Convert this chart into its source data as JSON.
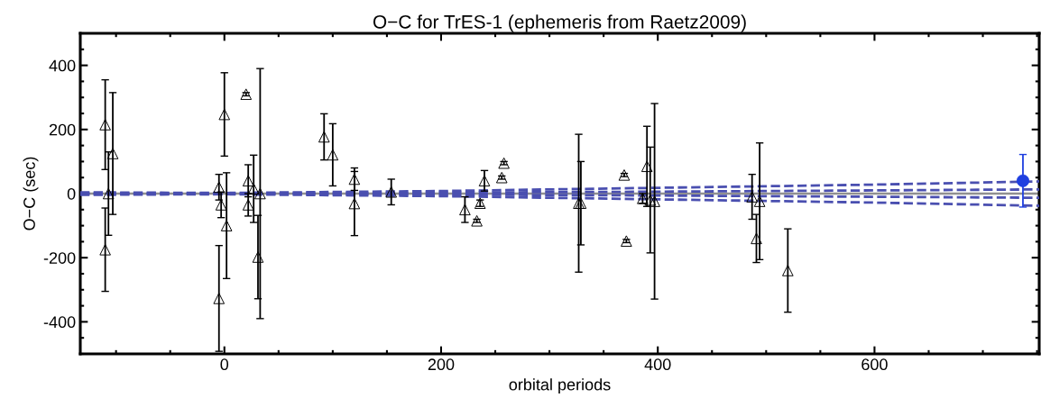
{
  "chart_data": {
    "type": "scatter",
    "title": "O−C for TrES-1 (ephemeris from Raetz2009)",
    "xlabel": "orbital periods",
    "ylabel": "O−C (sec)",
    "xlim": [
      -133,
      752
    ],
    "ylim": [
      -500,
      500
    ],
    "xticks": [
      0,
      200,
      400,
      600
    ],
    "yticks": [
      -400,
      -200,
      0,
      200,
      400
    ],
    "grid": false,
    "ref_lines": [
      {
        "axis": "y",
        "value": 0,
        "color": "#909090",
        "line_style": "solid"
      }
    ],
    "series": [
      {
        "type": "line",
        "color": "#4a4fb0",
        "line_style": "dashed",
        "marker": "none",
        "x": [
          -133,
          0,
          200,
          400,
          600,
          752
        ],
        "values": [
          4,
          2,
          8,
          18,
          28,
          38
        ]
      },
      {
        "type": "line",
        "color": "#4a4fb0",
        "line_style": "dashed",
        "marker": "none",
        "x": [
          -133,
          0,
          200,
          400,
          600,
          752
        ],
        "values": [
          -4,
          -2,
          -8,
          -18,
          -28,
          -38
        ]
      },
      {
        "type": "line",
        "color": "#4a4fb0",
        "line_style": "dashed",
        "marker": "none",
        "x": [
          -133,
          0,
          200,
          400,
          600,
          752
        ],
        "values": [
          1,
          0,
          3,
          6,
          10,
          13
        ]
      },
      {
        "type": "line",
        "color": "#4a4fb0",
        "line_style": "dashed",
        "marker": "none",
        "x": [
          -133,
          0,
          200,
          400,
          600,
          752
        ],
        "values": [
          -1,
          0,
          -3,
          -6,
          -10,
          -13
        ]
      },
      {
        "color": "#000000",
        "marker": "triangle",
        "x": [
          -110,
          -110,
          -107,
          -103,
          -5,
          -5,
          0,
          2,
          -3,
          20,
          22,
          22,
          27,
          31,
          33,
          92,
          100,
          120,
          120,
          154,
          222,
          233,
          236,
          240,
          256,
          258,
          327,
          329,
          369,
          371,
          386,
          390,
          397,
          393,
          487,
          491,
          494,
          520
        ],
        "values": [
          215,
          -175,
          0,
          125,
          20,
          -327,
          247,
          -100,
          -35,
          310,
          40,
          -35,
          15,
          -198,
          0,
          177,
          121,
          45,
          -31,
          5,
          -50,
          -85,
          -30,
          40,
          50,
          95,
          -30,
          -30,
          58,
          -148,
          -15,
          85,
          -24,
          -20,
          -10,
          -140,
          -24,
          -240
        ],
        "errors": [
          140,
          130,
          130,
          190,
          40,
          165,
          130,
          165,
          40,
          5,
          50,
          35,
          105,
          130,
          390,
          72,
          97,
          35,
          100,
          40,
          40,
          5,
          10,
          32,
          5,
          5,
          215,
          130,
          5,
          5,
          15,
          125,
          305,
          165,
          70,
          75,
          182,
          130
        ]
      },
      {
        "color": "#1f3fe0",
        "marker": "circle",
        "x": [
          737
        ],
        "values": [
          40
        ],
        "errors": [
          82
        ]
      }
    ]
  }
}
